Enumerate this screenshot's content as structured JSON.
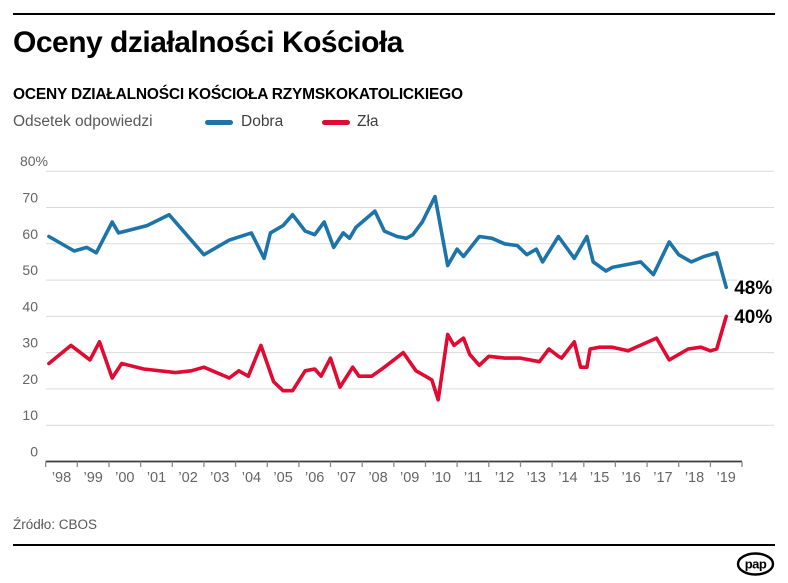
{
  "page": {
    "title": "Oceny działalności Kościoła",
    "subtitle": "OCENY DZIAŁALNOŚCI KOŚCIOŁA RZYMSKOKATOLICKIEGO",
    "source": "Źródło: CBOS",
    "logo_text": "pap"
  },
  "legend": {
    "prefix": "Odsetek odpowiedzi",
    "items": [
      {
        "label": "Dobra",
        "color": "#1d74a8"
      },
      {
        "label": "Zła",
        "color": "#e10a32"
      }
    ]
  },
  "chart_data": {
    "type": "line",
    "title": "Oceny działalności Kościoła rzymskokatolickiego",
    "xlabel": "",
    "ylabel": "Odsetek odpowiedzi (%)",
    "ylim": [
      0,
      80
    ],
    "x_range_years": [
      1998,
      2020
    ],
    "grid": true,
    "legend_position": "top",
    "y_ticks": [
      {
        "value": 80,
        "label": "80%"
      },
      {
        "value": 70,
        "label": "70"
      },
      {
        "value": 60,
        "label": "60"
      },
      {
        "value": 50,
        "label": "50"
      },
      {
        "value": 40,
        "label": "40"
      },
      {
        "value": 30,
        "label": "30"
      },
      {
        "value": 20,
        "label": "20"
      },
      {
        "value": 10,
        "label": "10"
      },
      {
        "value": 0,
        "label": "0"
      }
    ],
    "x_tick_labels": [
      "’98",
      "’99",
      "’00",
      "’01",
      "’02",
      "’03",
      "’04",
      "’05",
      "’06",
      "’07",
      "’08",
      "’09",
      "’10",
      "’11",
      "’12",
      "’13",
      "’14",
      "’15",
      "’16",
      "’17",
      "’18",
      "’19"
    ],
    "series": [
      {
        "name": "Dobra",
        "color": "#1d74a8",
        "points": [
          [
            1998.1,
            62
          ],
          [
            1998.9,
            58
          ],
          [
            1999.3,
            59
          ],
          [
            1999.6,
            57.5
          ],
          [
            2000.1,
            66
          ],
          [
            2000.3,
            63
          ],
          [
            2001.2,
            65
          ],
          [
            2001.9,
            68
          ],
          [
            2003.0,
            57
          ],
          [
            2003.8,
            61
          ],
          [
            2004.5,
            63
          ],
          [
            2004.9,
            56
          ],
          [
            2005.1,
            63
          ],
          [
            2005.5,
            65
          ],
          [
            2005.8,
            68
          ],
          [
            2006.2,
            63.5
          ],
          [
            2006.5,
            62.5
          ],
          [
            2006.8,
            66
          ],
          [
            2007.1,
            59
          ],
          [
            2007.4,
            63
          ],
          [
            2007.6,
            61.5
          ],
          [
            2007.8,
            64.5
          ],
          [
            2008.4,
            69
          ],
          [
            2008.7,
            63.5
          ],
          [
            2009.1,
            62
          ],
          [
            2009.4,
            61.5
          ],
          [
            2009.6,
            62.5
          ],
          [
            2009.9,
            66
          ],
          [
            2010.3,
            73
          ],
          [
            2010.7,
            54
          ],
          [
            2011.0,
            58.5
          ],
          [
            2011.2,
            56.5
          ],
          [
            2011.7,
            62
          ],
          [
            2012.1,
            61.5
          ],
          [
            2012.5,
            60
          ],
          [
            2012.9,
            59.5
          ],
          [
            2013.2,
            57
          ],
          [
            2013.5,
            58.5
          ],
          [
            2013.7,
            55
          ],
          [
            2014.2,
            62
          ],
          [
            2014.7,
            56
          ],
          [
            2015.1,
            62
          ],
          [
            2015.3,
            55
          ],
          [
            2015.7,
            52.5
          ],
          [
            2015.9,
            53.5
          ],
          [
            2016.8,
            55
          ],
          [
            2017.2,
            51.5
          ],
          [
            2017.7,
            60.5
          ],
          [
            2018.0,
            57
          ],
          [
            2018.4,
            55
          ],
          [
            2018.8,
            56.5
          ],
          [
            2019.2,
            57.5
          ],
          [
            2019.5,
            48
          ]
        ]
      },
      {
        "name": "Zła",
        "color": "#e10a32",
        "points": [
          [
            1998.1,
            27
          ],
          [
            1998.8,
            32
          ],
          [
            1999.4,
            28
          ],
          [
            1999.7,
            33
          ],
          [
            2000.1,
            23
          ],
          [
            2000.4,
            27
          ],
          [
            2001.1,
            25.5
          ],
          [
            2002.1,
            24.5
          ],
          [
            2002.6,
            25
          ],
          [
            2003.0,
            26
          ],
          [
            2003.8,
            23
          ],
          [
            2004.1,
            25
          ],
          [
            2004.4,
            23.5
          ],
          [
            2004.8,
            32
          ],
          [
            2005.2,
            22
          ],
          [
            2005.5,
            19.5
          ],
          [
            2005.8,
            19.5
          ],
          [
            2006.2,
            25
          ],
          [
            2006.5,
            25.5
          ],
          [
            2006.7,
            23.5
          ],
          [
            2007.0,
            28.5
          ],
          [
            2007.3,
            20.5
          ],
          [
            2007.7,
            26
          ],
          [
            2007.9,
            23.5
          ],
          [
            2008.3,
            23.5
          ],
          [
            2008.7,
            26
          ],
          [
            2009.0,
            28
          ],
          [
            2009.3,
            30
          ],
          [
            2009.7,
            25
          ],
          [
            2010.0,
            23.5
          ],
          [
            2010.2,
            22.5
          ],
          [
            2010.4,
            17
          ],
          [
            2010.7,
            35
          ],
          [
            2010.9,
            32
          ],
          [
            2011.2,
            34
          ],
          [
            2011.4,
            29.5
          ],
          [
            2011.7,
            26.5
          ],
          [
            2012.0,
            29
          ],
          [
            2012.5,
            28.5
          ],
          [
            2013.0,
            28.5
          ],
          [
            2013.6,
            27.5
          ],
          [
            2013.9,
            31
          ],
          [
            2014.2,
            29
          ],
          [
            2014.3,
            28.5
          ],
          [
            2014.7,
            33
          ],
          [
            2014.9,
            26
          ],
          [
            2015.1,
            26
          ],
          [
            2015.2,
            31
          ],
          [
            2015.5,
            31.5
          ],
          [
            2015.9,
            31.5
          ],
          [
            2016.4,
            30.5
          ],
          [
            2017.3,
            34
          ],
          [
            2017.7,
            28
          ],
          [
            2018.3,
            31
          ],
          [
            2018.7,
            31.5
          ],
          [
            2019.0,
            30.5
          ],
          [
            2019.2,
            31
          ],
          [
            2019.5,
            40
          ]
        ]
      }
    ],
    "end_labels": [
      {
        "text": "48%",
        "year": 2019.5,
        "value": 48,
        "series": "Dobra"
      },
      {
        "text": "40%",
        "year": 2019.5,
        "value": 40,
        "series": "Zła"
      }
    ]
  }
}
